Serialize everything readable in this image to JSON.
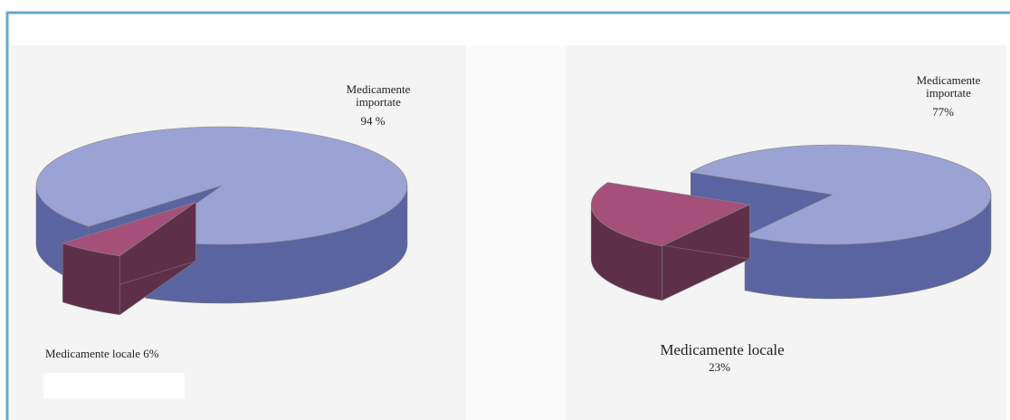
{
  "chart_data": [
    {
      "type": "pie",
      "categories": [
        "Medicamente importate",
        "Medicamente locale"
      ],
      "values": [
        94,
        6
      ],
      "value_labels": [
        "94 %",
        "6%"
      ],
      "colors": [
        "#9aa3d4",
        "#a4507a"
      ],
      "side_colors": [
        "#5a64a0",
        "#5e2f48"
      ]
    },
    {
      "type": "pie",
      "categories": [
        "Medicamente importate",
        "Medicamente locale"
      ],
      "values": [
        77,
        23
      ],
      "value_labels": [
        "77%",
        "23%"
      ],
      "colors": [
        "#9aa3d4",
        "#a4507a"
      ],
      "side_colors": [
        "#5a64a0",
        "#5e2f48"
      ]
    }
  ]
}
